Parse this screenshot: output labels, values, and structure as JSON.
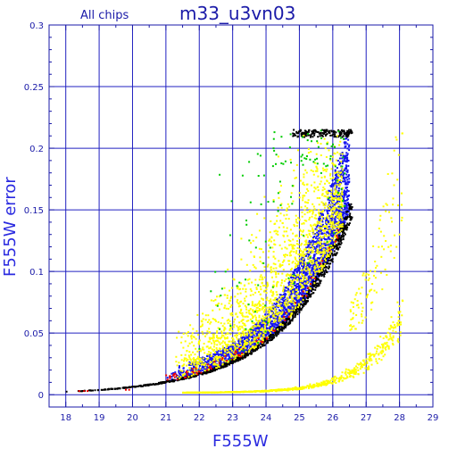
{
  "chart_data": {
    "type": "scatter",
    "title": "m33_u3vn03",
    "subtitle": "All chips",
    "xlabel": "F555W",
    "ylabel": "F555W error",
    "xlim": [
      17.5,
      29
    ],
    "ylim": [
      -0.01,
      0.3
    ],
    "x_ticks": [
      18,
      19,
      20,
      21,
      22,
      23,
      24,
      25,
      26,
      27,
      28,
      29
    ],
    "x_tick_labels": [
      "18",
      "19",
      "20",
      "21",
      "22",
      "23",
      "24",
      "25",
      "26",
      "27",
      "28",
      "29"
    ],
    "y_ticks": [
      0,
      0.05,
      0.1,
      0.15,
      0.2,
      0.25,
      0.3
    ],
    "y_tick_labels": [
      "0",
      "0.05",
      "0.1",
      "0.15",
      "0.2",
      "0.25",
      "0.3"
    ],
    "grid": true,
    "error_cap": 0.215,
    "series": [
      {
        "color": "#000000",
        "description_points": [
          [
            18.0,
            0.002
          ],
          [
            19.0,
            0.003
          ],
          [
            20.0,
            0.004
          ],
          [
            21.0,
            0.007
          ],
          [
            22.0,
            0.013
          ],
          [
            23.0,
            0.027
          ],
          [
            24.0,
            0.05
          ],
          [
            24.5,
            0.068
          ],
          [
            25.0,
            0.09
          ],
          [
            25.5,
            0.12
          ],
          [
            26.0,
            0.16
          ],
          [
            26.3,
            0.19
          ],
          [
            26.5,
            0.215
          ]
        ]
      },
      {
        "color": "#1515ee",
        "description_points": [
          [
            21.0,
            0.01
          ],
          [
            22.0,
            0.02
          ],
          [
            23.0,
            0.04
          ],
          [
            24.0,
            0.07
          ],
          [
            24.5,
            0.09
          ],
          [
            25.0,
            0.12
          ],
          [
            25.5,
            0.16
          ],
          [
            26.0,
            0.2
          ]
        ]
      },
      {
        "color": "#ffff00",
        "description_points": [
          [
            21.5,
            0.005
          ],
          [
            22.5,
            0.025
          ],
          [
            23.0,
            0.06
          ],
          [
            23.5,
            0.09
          ],
          [
            24.0,
            0.11
          ],
          [
            24.5,
            0.14
          ],
          [
            25.0,
            0.18
          ],
          [
            25.5,
            0.2
          ],
          [
            22.0,
            0.0
          ],
          [
            24.0,
            0.005
          ],
          [
            25.5,
            0.02
          ],
          [
            26.5,
            0.05
          ],
          [
            27.0,
            0.08
          ],
          [
            27.5,
            0.15
          ],
          [
            28.0,
            0.21
          ]
        ]
      },
      {
        "color": "#ee0000",
        "description_points": [
          [
            18.4,
            0.003
          ],
          [
            18.6,
            0.003
          ],
          [
            19.8,
            0.004
          ],
          [
            24.5,
            0.08
          ],
          [
            25.2,
            0.13
          ]
        ]
      },
      {
        "color": "#00cc00",
        "description_points": [
          [
            22.5,
            0.01
          ],
          [
            24.2,
            0.19
          ],
          [
            25.0,
            0.2
          ],
          [
            25.8,
            0.2
          ]
        ]
      }
    ]
  },
  "colors": {
    "axis": "#1a1aa8",
    "grid": "#2020c0",
    "background": "#ffffff"
  }
}
